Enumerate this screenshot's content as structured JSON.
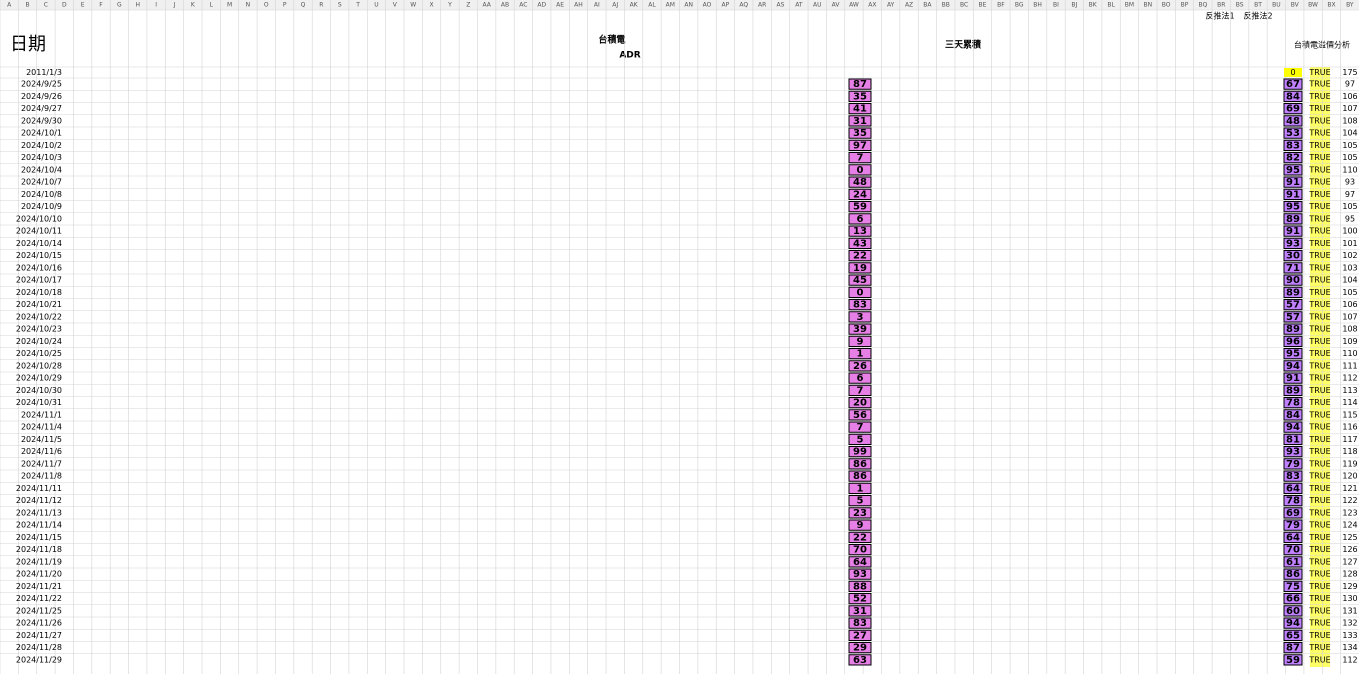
{
  "sheet": {
    "column_letters": [
      "A",
      "B",
      "C",
      "D",
      "E",
      "F",
      "G",
      "H",
      "I",
      "J",
      "K",
      "L",
      "M",
      "N",
      "O",
      "P",
      "Q",
      "R",
      "S",
      "T",
      "U",
      "V",
      "W",
      "X",
      "Y",
      "Z",
      "AA",
      "AB",
      "AC",
      "AD",
      "AE",
      "AH",
      "AI",
      "AJ",
      "AK",
      "AL",
      "AM",
      "AN",
      "AO",
      "AP",
      "AQ",
      "AR",
      "AS",
      "AT",
      "AU",
      "AV",
      "AW",
      "AX",
      "AY",
      "AZ",
      "BA",
      "BB",
      "BC",
      "BE",
      "BF",
      "BG",
      "BH",
      "BI",
      "BJ",
      "BK",
      "BL",
      "BM",
      "BN",
      "BO",
      "BP",
      "BQ",
      "BR",
      "BS",
      "BT",
      "BU",
      "BV",
      "BW",
      "BX",
      "BY"
    ],
    "headers": {
      "date": "日期",
      "tsmc": "台積電",
      "adr": "ADR",
      "three_day": "三天累積",
      "method1": "反推法1",
      "method2": "反推法2",
      "premium": "台積電溢價分析"
    },
    "first_row": {
      "date": "2011/1/3",
      "bw": "0",
      "bx": "TRUE",
      "by": "175"
    },
    "rows": {
      "dates": [
        "2024/9/25",
        "2024/9/26",
        "2024/9/27",
        "2024/9/30",
        "2024/10/1",
        "2024/10/2",
        "2024/10/3",
        "2024/10/4",
        "2024/10/7",
        "2024/10/8",
        "2024/10/9",
        "2024/10/10",
        "2024/10/11",
        "2024/10/14",
        "2024/10/15",
        "2024/10/16",
        "2024/10/17",
        "2024/10/18",
        "2024/10/21",
        "2024/10/22",
        "2024/10/23",
        "2024/10/24",
        "2024/10/25",
        "2024/10/28",
        "2024/10/29",
        "2024/10/30",
        "2024/10/31",
        "2024/11/1",
        "2024/11/4",
        "2024/11/5",
        "2024/11/6",
        "2024/11/7",
        "2024/11/8",
        "2024/11/11",
        "2024/11/12",
        "2024/11/13",
        "2024/11/14",
        "2024/11/15",
        "2024/11/18",
        "2024/11/19",
        "2024/11/20",
        "2024/11/21",
        "2024/11/22",
        "2024/11/25",
        "2024/11/26",
        "2024/11/27",
        "2024/11/28",
        "2024/11/29"
      ],
      "bc": [
        "87",
        "35",
        "41",
        "31",
        "35",
        "97",
        "7",
        "0",
        "48",
        "24",
        "59",
        "6",
        "13",
        "43",
        "22",
        "19",
        "45",
        "0",
        "83",
        "3",
        "39",
        "9",
        "1",
        "26",
        "6",
        "7",
        "20",
        "56",
        "7",
        "5",
        "99",
        "86",
        "86",
        "1",
        "5",
        "23",
        "9",
        "22",
        "70",
        "64",
        "93",
        "88",
        "52",
        "31",
        "83",
        "27",
        "29",
        "63"
      ],
      "bw": [
        "67",
        "84",
        "69",
        "48",
        "53",
        "83",
        "82",
        "95",
        "91",
        "91",
        "95",
        "89",
        "91",
        "93",
        "30",
        "71",
        "90",
        "89",
        "57",
        "57",
        "89",
        "96",
        "95",
        "94",
        "91",
        "89",
        "78",
        "84",
        "94",
        "81",
        "93",
        "79",
        "83",
        "64",
        "78",
        "69",
        "79",
        "64",
        "70",
        "61",
        "86",
        "75",
        "66",
        "60",
        "94",
        "65",
        "87",
        "59"
      ],
      "bx": [
        "TRUE",
        "TRUE",
        "TRUE",
        "TRUE",
        "TRUE",
        "TRUE",
        "TRUE",
        "TRUE",
        "TRUE",
        "TRUE",
        "TRUE",
        "TRUE",
        "TRUE",
        "TRUE",
        "TRUE",
        "TRUE",
        "TRUE",
        "TRUE",
        "TRUE",
        "TRUE",
        "TRUE",
        "TRUE",
        "TRUE",
        "TRUE",
        "TRUE",
        "TRUE",
        "TRUE",
        "TRUE",
        "TRUE",
        "TRUE",
        "TRUE",
        "TRUE",
        "TRUE",
        "TRUE",
        "TRUE",
        "TRUE",
        "TRUE",
        "TRUE",
        "TRUE",
        "TRUE",
        "TRUE",
        "TRUE",
        "TRUE",
        "TRUE",
        "TRUE",
        "TRUE",
        "TRUE",
        "TRUE"
      ],
      "by": [
        "97",
        "106",
        "107",
        "108",
        "104",
        "105",
        "105",
        "110",
        "93",
        "97",
        "105",
        "95",
        "100",
        "101",
        "102",
        "103",
        "104",
        "105",
        "106",
        "107",
        "108",
        "109",
        "110",
        "111",
        "112",
        "113",
        "114",
        "115",
        "116",
        "117",
        "118",
        "119",
        "120",
        "121",
        "122",
        "123",
        "124",
        "125",
        "126",
        "127",
        "128",
        "129",
        "130",
        "131",
        "132",
        "133",
        "134",
        "112"
      ]
    }
  }
}
